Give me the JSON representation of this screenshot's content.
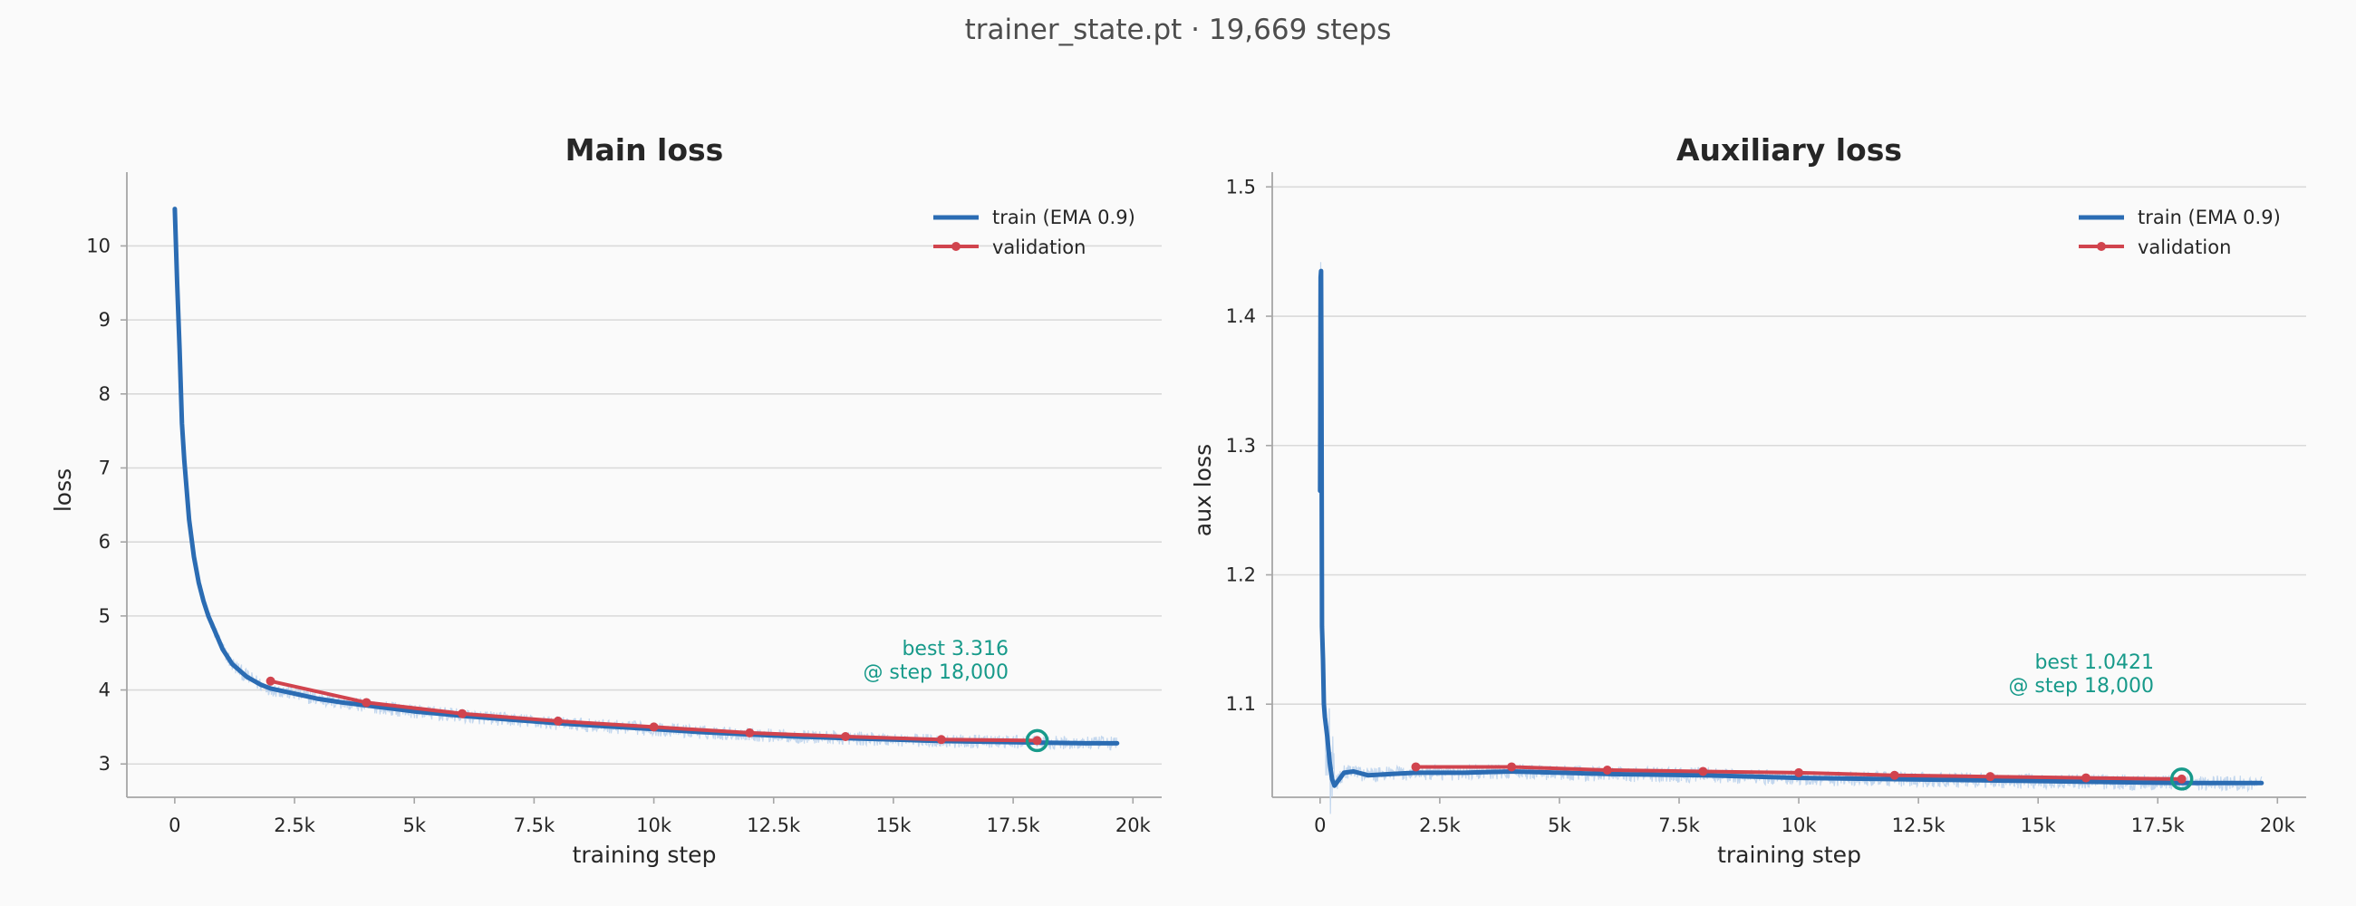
{
  "figure": {
    "suptitle": "trainer_state.pt  ·  19,669 steps"
  },
  "colors": {
    "train": "#2b6cb3",
    "train_raw": "#bcd3ec",
    "validation": "#d1444e",
    "best": "#179a8a",
    "grid": "#d9d9d9",
    "spine": "#a6a6a6"
  },
  "chart_data": [
    {
      "type": "line",
      "title": "Main loss",
      "xlabel": "training step",
      "ylabel": "loss",
      "xlim": [
        -1000,
        20600
      ],
      "ylim": [
        2.55,
        10.85
      ],
      "xticks": [
        0,
        2500,
        5000,
        7500,
        10000,
        12500,
        15000,
        17500,
        20000
      ],
      "xtick_labels": [
        "0",
        "2.5k",
        "5k",
        "7.5k",
        "10k",
        "12.5k",
        "15k",
        "17.5k",
        "20k"
      ],
      "yticks": [
        3,
        4,
        5,
        6,
        7,
        8,
        9,
        10
      ],
      "ytick_labels": [
        "3",
        "4",
        "5",
        "6",
        "7",
        "8",
        "9",
        "10"
      ],
      "grid": "horizontal",
      "legend_position": "top-right",
      "series": [
        {
          "name": "train (EMA 0.9)",
          "style": "line",
          "x": [
            0,
            50,
            100,
            150,
            200,
            300,
            400,
            500,
            600,
            700,
            800,
            1000,
            1200,
            1500,
            1800,
            2000,
            2500,
            3000,
            3500,
            4000,
            5000,
            6000,
            7000,
            8000,
            9000,
            10000,
            11000,
            12000,
            13000,
            14000,
            15000,
            16000,
            17000,
            18000,
            19000,
            19669
          ],
          "values": [
            10.5,
            9.5,
            8.6,
            7.6,
            7.1,
            6.3,
            5.8,
            5.45,
            5.2,
            5.0,
            4.85,
            4.55,
            4.35,
            4.18,
            4.07,
            4.02,
            3.95,
            3.88,
            3.83,
            3.79,
            3.71,
            3.65,
            3.6,
            3.55,
            3.51,
            3.47,
            3.43,
            3.4,
            3.37,
            3.35,
            3.33,
            3.31,
            3.3,
            3.29,
            3.28,
            3.28
          ]
        },
        {
          "name": "validation",
          "style": "line-markers",
          "x": [
            2000,
            4000,
            6000,
            8000,
            10000,
            12000,
            14000,
            16000,
            18000
          ],
          "values": [
            4.12,
            3.83,
            3.68,
            3.58,
            3.5,
            3.42,
            3.37,
            3.33,
            3.316
          ]
        }
      ],
      "best": {
        "x": 18000,
        "y": 3.316,
        "line1": "best 3.316",
        "line2": "@ step 18,000"
      }
    },
    {
      "type": "line",
      "title": "Auxiliary loss",
      "xlabel": "training step",
      "ylabel": "aux loss",
      "xlim": [
        -1000,
        20600
      ],
      "ylim": [
        1.028,
        1.503
      ],
      "xticks": [
        0,
        2500,
        5000,
        7500,
        10000,
        12500,
        15000,
        17500,
        20000
      ],
      "xtick_labels": [
        "0",
        "2.5k",
        "5k",
        "7.5k",
        "10k",
        "12.5k",
        "15k",
        "17.5k",
        "20k"
      ],
      "yticks": [
        1.1,
        1.2,
        1.3,
        1.4,
        1.5
      ],
      "ytick_labels": [
        "1.1",
        "1.2",
        "1.3",
        "1.4",
        "1.5"
      ],
      "grid": "horizontal",
      "legend_position": "top-right",
      "series": [
        {
          "name": "train (EMA 0.9)",
          "style": "line",
          "x": [
            0,
            10,
            20,
            30,
            40,
            60,
            80,
            100,
            150,
            200,
            250,
            300,
            400,
            500,
            700,
            1000,
            1500,
            2000,
            3000,
            4000,
            5000,
            6000,
            8000,
            10000,
            12000,
            14000,
            16000,
            18000,
            19669
          ],
          "values": [
            1.265,
            1.43,
            1.435,
            1.33,
            1.16,
            1.135,
            1.1,
            1.09,
            1.075,
            1.055,
            1.042,
            1.037,
            1.042,
            1.047,
            1.048,
            1.045,
            1.046,
            1.047,
            1.047,
            1.048,
            1.047,
            1.046,
            1.045,
            1.043,
            1.042,
            1.041,
            1.04,
            1.039,
            1.039
          ]
        },
        {
          "name": "validation",
          "style": "line-markers",
          "x": [
            2000,
            4000,
            6000,
            8000,
            10000,
            12000,
            14000,
            16000,
            18000
          ],
          "values": [
            1.0515,
            1.0515,
            1.049,
            1.048,
            1.047,
            1.045,
            1.044,
            1.043,
            1.0421
          ]
        }
      ],
      "best": {
        "x": 18000,
        "y": 1.0421,
        "line1": "best 1.0421",
        "line2": "@ step 18,000"
      }
    }
  ]
}
